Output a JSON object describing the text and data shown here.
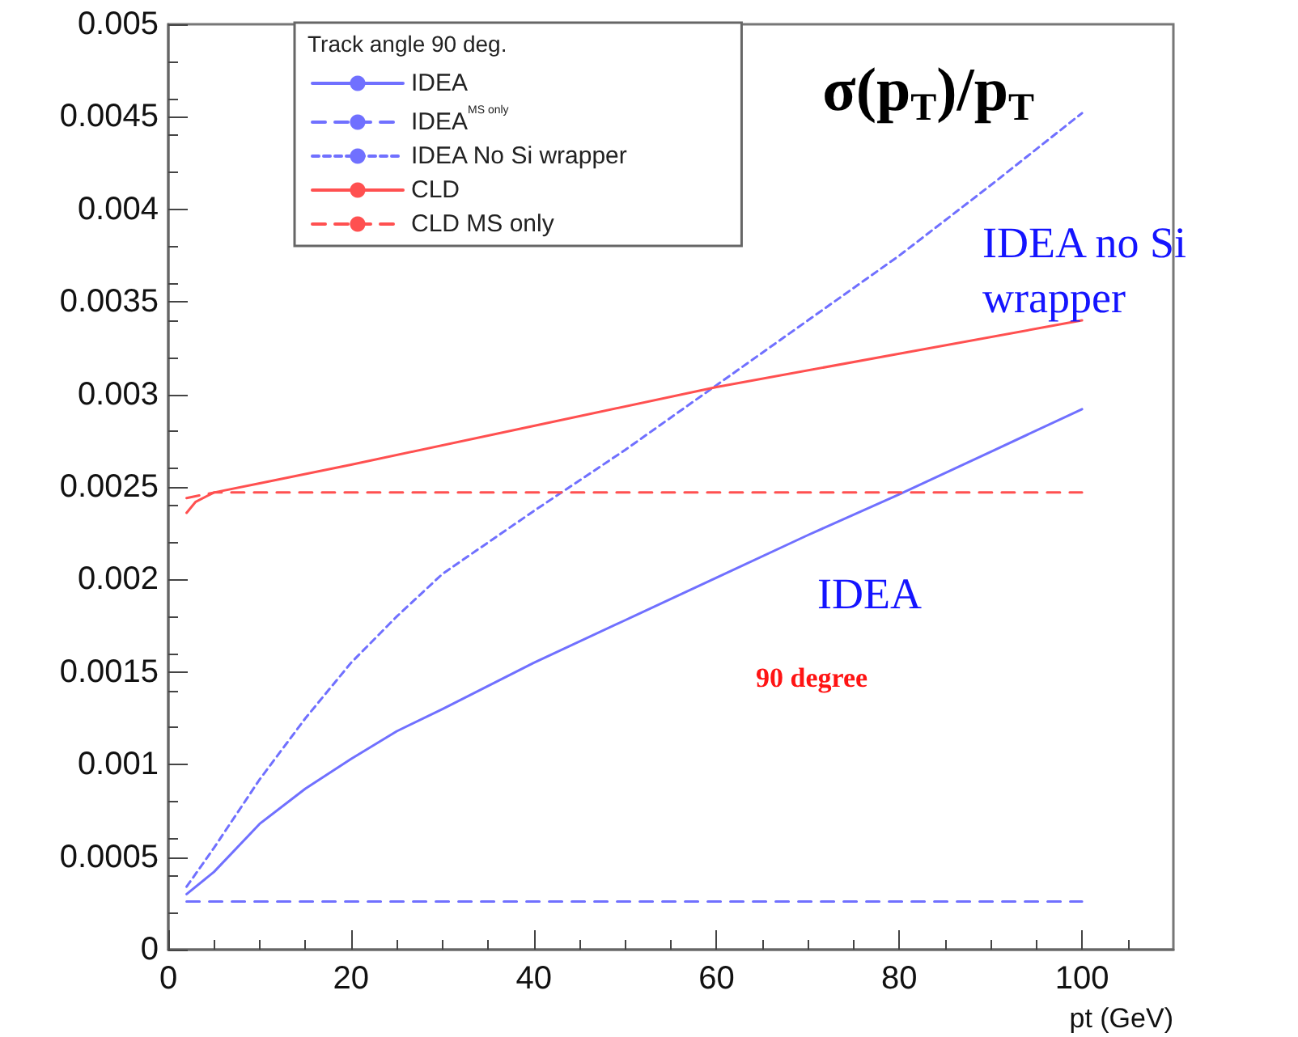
{
  "chart_data": {
    "type": "line",
    "title": "σ(p$_{T}$)/p$_{T}$",
    "xlabel": "pt (GeV)",
    "legend_title": "Track angle 90 deg.",
    "legend": "top left",
    "xlim": [
      0,
      110
    ],
    "xticks": [
      0,
      20,
      40,
      60,
      80,
      100
    ],
    "ylim": [
      0,
      0.005
    ],
    "yticks": [
      0,
      0.0005,
      0.001,
      0.0015,
      0.002,
      0.0025,
      0.003,
      0.0035,
      0.004,
      0.0045,
      0.005
    ],
    "annotations": [
      "IDEA no Si wrapper",
      "IDEA",
      "90 degree"
    ],
    "series": [
      {
        "name": "IDEA",
        "color": "#7070ff",
        "line_style": "solid",
        "x": [
          2,
          5,
          10,
          15,
          20,
          25,
          30,
          40,
          50,
          60,
          70,
          80,
          90,
          100
        ],
        "values": [
          0.0003,
          0.00042,
          0.00068,
          0.00087,
          0.00103,
          0.00118,
          0.0013,
          0.00155,
          0.00178,
          0.00201,
          0.00224,
          0.00246,
          0.00269,
          0.00292
        ]
      },
      {
        "name": "IDEA$^{MS only}$",
        "color": "#7070ff",
        "line_style": "dashed",
        "x": [
          2,
          100
        ],
        "values": [
          0.00026,
          0.00026
        ]
      },
      {
        "name": "IDEA No Si wrapper",
        "color": "#7070ff",
        "line_style": "dotted",
        "x": [
          2,
          5,
          10,
          15,
          20,
          25,
          30,
          40,
          50,
          60,
          70,
          80,
          90,
          100
        ],
        "values": [
          0.00034,
          0.00055,
          0.00092,
          0.00125,
          0.00155,
          0.0018,
          0.00203,
          0.00237,
          0.0027,
          0.00305,
          0.0034,
          0.00375,
          0.00413,
          0.00452
        ]
      },
      {
        "name": "CLD",
        "color": "#ff5050",
        "line_style": "solid",
        "x": [
          2,
          3,
          5,
          10,
          20,
          40,
          60,
          80,
          100
        ],
        "values": [
          0.00236,
          0.00242,
          0.00247,
          0.00252,
          0.00262,
          0.00283,
          0.00304,
          0.00322,
          0.0034
        ]
      },
      {
        "name": "CLD MS only",
        "color": "#ff5050",
        "line_style": "dashed",
        "x": [
          2,
          5,
          100
        ],
        "values": [
          0.00244,
          0.00247,
          0.00247
        ]
      }
    ]
  }
}
